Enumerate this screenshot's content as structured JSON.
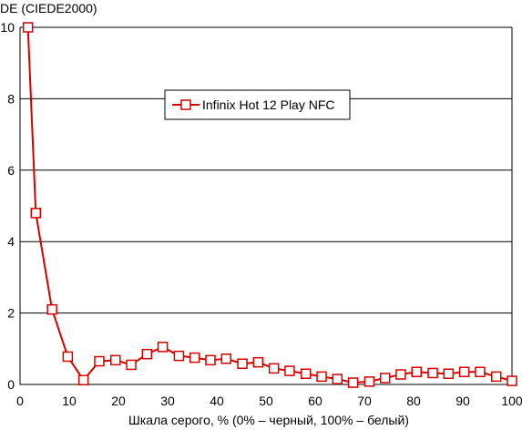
{
  "chart_data": {
    "type": "line",
    "title": "",
    "ylabel": "DE (CIEDE2000)",
    "xlabel": "Шкала серого, % (0% – черный, 100% – белый)",
    "xlim": [
      0,
      100
    ],
    "ylim": [
      0,
      10
    ],
    "xticks": [
      0,
      10,
      20,
      30,
      40,
      50,
      60,
      70,
      80,
      90,
      100
    ],
    "yticks": [
      0,
      2,
      4,
      6,
      8,
      10
    ],
    "grid": "horizontal",
    "legend_position": "top-center",
    "series": [
      {
        "name": "Infinix Hot 12 Play NFC",
        "color": "#d40000",
        "x": [
          1.6,
          3.2,
          6.5,
          9.7,
          12.9,
          16.1,
          19.4,
          22.6,
          25.8,
          29.0,
          32.3,
          35.5,
          38.7,
          41.9,
          45.2,
          48.4,
          51.6,
          54.8,
          58.1,
          61.3,
          64.5,
          67.7,
          71.0,
          74.2,
          77.4,
          80.6,
          83.9,
          87.1,
          90.3,
          93.5,
          96.8,
          100.0
        ],
        "y": [
          10.0,
          4.8,
          2.1,
          0.78,
          0.12,
          0.65,
          0.68,
          0.55,
          0.85,
          1.05,
          0.8,
          0.75,
          0.68,
          0.72,
          0.58,
          0.62,
          0.45,
          0.38,
          0.3,
          0.22,
          0.15,
          0.05,
          0.08,
          0.18,
          0.28,
          0.35,
          0.32,
          0.3,
          0.35,
          0.35,
          0.22,
          0.1
        ]
      }
    ]
  }
}
